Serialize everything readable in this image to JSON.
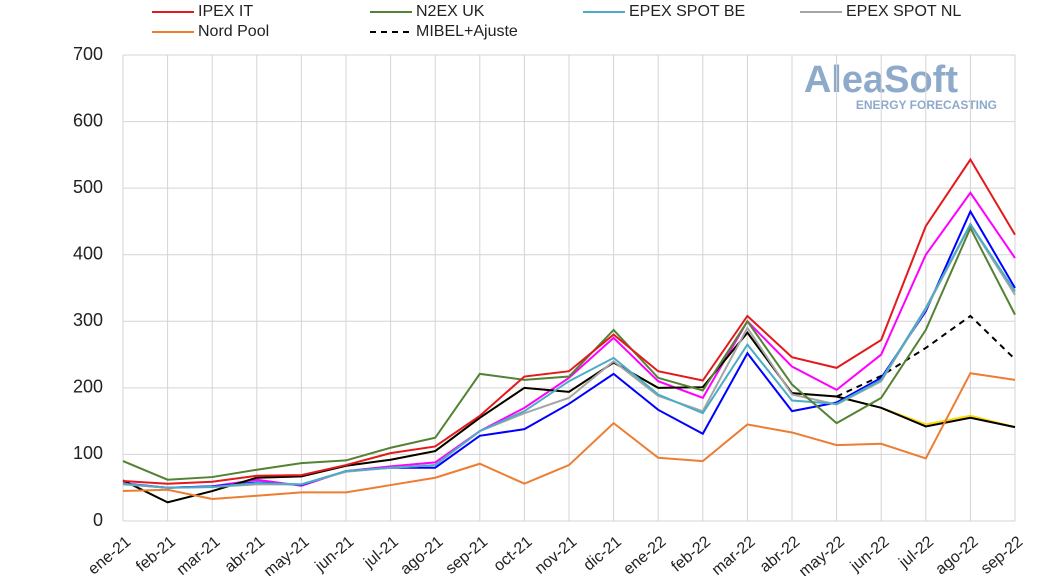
{
  "chart_data": {
    "type": "line",
    "categories": [
      "ene-21",
      "feb-21",
      "mar-21",
      "abr-21",
      "may-21",
      "jun-21",
      "jul-21",
      "ago-21",
      "sep-21",
      "oct-21",
      "nov-21",
      "dic-21",
      "ene-22",
      "feb-22",
      "mar-22",
      "abr-22",
      "may-22",
      "jun-22",
      "jul-22",
      "ago-22",
      "sep-22"
    ],
    "ylim": [
      0,
      700
    ],
    "yticks": [
      0,
      100,
      200,
      300,
      400,
      500,
      600,
      700
    ],
    "grid": true,
    "watermark": {
      "brand": "AleaSoft",
      "tagline": "ENERGY FORECASTING"
    },
    "series": [
      {
        "name": "IPEX IT",
        "color": "#e31a1c",
        "values": [
          60,
          56,
          59,
          68,
          69,
          84,
          102,
          112,
          158,
          217,
          225,
          280,
          225,
          211,
          308,
          246,
          230,
          272,
          443,
          543,
          430
        ]
      },
      {
        "name": "N2EX UK",
        "color": "#548235",
        "values": [
          90,
          62,
          66,
          77,
          87,
          91,
          110,
          125,
          221,
          212,
          217,
          287,
          215,
          196,
          300,
          205,
          147,
          185,
          287,
          440,
          310
        ]
      },
      {
        "name": "EPEX SPOT BE",
        "color": "#4bacc6",
        "values": [
          56,
          50,
          51,
          57,
          55,
          75,
          80,
          84,
          135,
          165,
          210,
          245,
          190,
          162,
          265,
          181,
          176,
          212,
          320,
          446,
          345
        ]
      },
      {
        "name": "EPEX SPOT NL",
        "color": "#a5a5a5",
        "values": [
          55,
          50,
          51,
          55,
          55,
          74,
          80,
          84,
          135,
          162,
          185,
          240,
          188,
          165,
          290,
          190,
          175,
          210,
          318,
          445,
          340
        ]
      },
      {
        "name": "Nord Pool",
        "color": "#ed7d31",
        "values": [
          45,
          47,
          33,
          38,
          43,
          43,
          54,
          65,
          86,
          56,
          84,
          147,
          95,
          90,
          145,
          133,
          114,
          116,
          94,
          222,
          212
        ]
      },
      {
        "name": "MIBEL+Ajuste",
        "color": "#000000",
        "dashed": true,
        "values": [
          null,
          null,
          null,
          null,
          null,
          null,
          null,
          null,
          null,
          null,
          null,
          null,
          null,
          null,
          null,
          null,
          187,
          218,
          260,
          308,
          243
        ]
      },
      {
        "color": "#ff00ff",
        "values": [
          57,
          50,
          52,
          62,
          53,
          75,
          82,
          88,
          135,
          170,
          215,
          275,
          210,
          185,
          300,
          232,
          197,
          250,
          400,
          493,
          395
        ]
      },
      {
        "color": "#0000ff",
        "values": [
          56,
          50,
          52,
          58,
          54,
          75,
          80,
          80,
          128,
          138,
          176,
          221,
          167,
          131,
          252,
          165,
          178,
          215,
          315,
          465,
          350
        ]
      },
      {
        "color": "#ffd700",
        "values": [
          61,
          28,
          45,
          65,
          67,
          83,
          92,
          105,
          155,
          200,
          194,
          238,
          200,
          201,
          283,
          192,
          187,
          170,
          145,
          158,
          141
        ]
      },
      {
        "color": "#000000",
        "values": [
          61,
          28,
          45,
          65,
          67,
          83,
          92,
          105,
          155,
          200,
          194,
          238,
          200,
          201,
          283,
          192,
          187,
          170,
          142,
          155,
          141
        ]
      }
    ]
  }
}
